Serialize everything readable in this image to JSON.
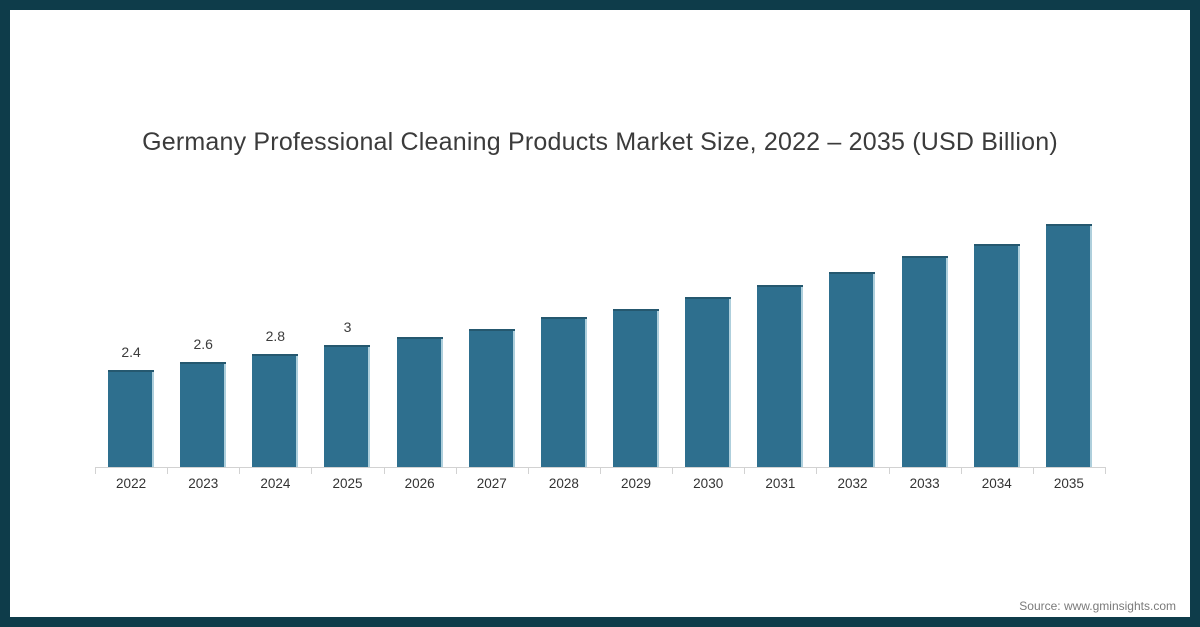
{
  "title": "Germany Professional Cleaning Products Market Size, 2022 – 2035 (USD Billion)",
  "source": "Source: www.gminsights.com",
  "colors": {
    "frame_border": "#0e3c4a",
    "bar": "#2e6f8e",
    "bar_top_edge": "#25586f",
    "bar_right_edge": "#aecfdc",
    "axis": "#d2d2d2",
    "title_text": "#3b3b3b",
    "axis_label_text": "#333333",
    "source_text": "#7a7a7a"
  },
  "chart_data": {
    "type": "bar",
    "title": "Germany Professional Cleaning Products Market Size, 2022 – 2035 (USD Billion)",
    "unit": "USD Billion",
    "categories": [
      "2022",
      "2023",
      "2024",
      "2025",
      "2026",
      "2027",
      "2028",
      "2029",
      "2030",
      "2031",
      "2032",
      "2033",
      "2034",
      "2035"
    ],
    "values": [
      2.4,
      2.6,
      2.8,
      3,
      3.2,
      3.4,
      3.7,
      3.9,
      4.2,
      4.5,
      4.8,
      5.2,
      5.5,
      6
    ],
    "data_labels": [
      "2.4",
      "2.6",
      "2.8",
      "3",
      "",
      "",
      "",
      "",
      "",
      "",
      "",
      "",
      "",
      ""
    ],
    "xlabel": "",
    "ylabel": "",
    "ylim": [
      0,
      6.5
    ],
    "grid": false,
    "legend": false,
    "axis_ticks": "bottom boundaries between categories"
  }
}
